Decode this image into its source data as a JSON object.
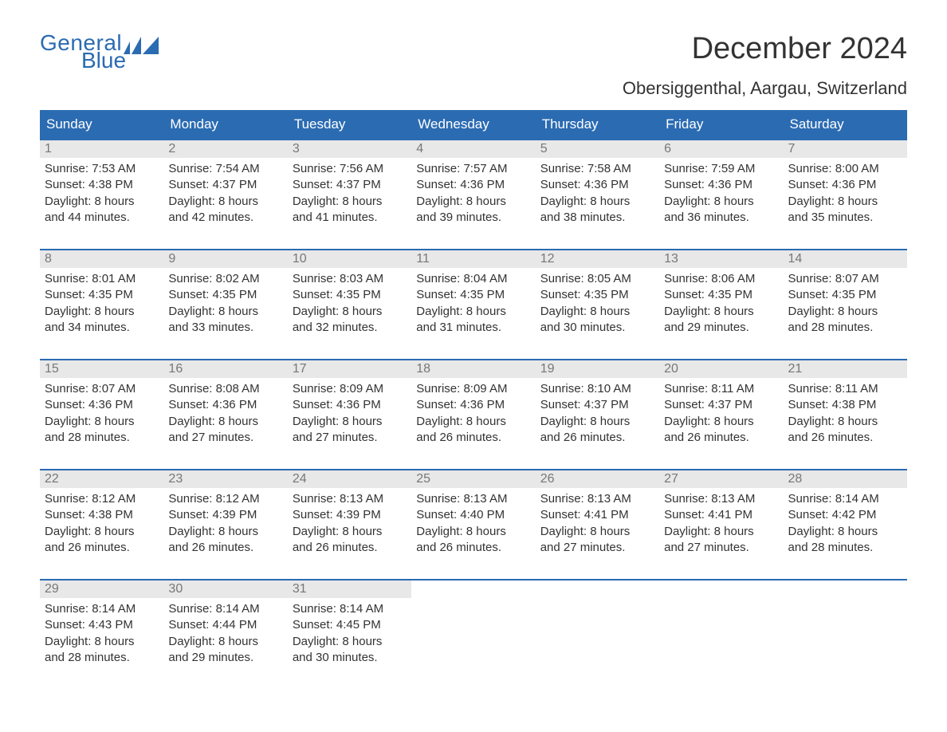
{
  "logo": {
    "text_top": "General",
    "text_bottom": "Blue",
    "color": "#2b6bb2"
  },
  "title": "December 2024",
  "location": "Obersiggenthal, Aargau, Switzerland",
  "colors": {
    "header_bg": "#2b6bb2",
    "header_text": "#ffffff",
    "day_number_bg": "#e8e8e8",
    "day_number_color": "#777777",
    "body_text": "#333333",
    "week_border": "#2b6bb2",
    "background": "#ffffff"
  },
  "typography": {
    "title_fontsize": 38,
    "location_fontsize": 22,
    "header_fontsize": 17,
    "daynum_fontsize": 16,
    "content_fontsize": 15,
    "font_family": "Arial"
  },
  "weekdays": [
    "Sunday",
    "Monday",
    "Tuesday",
    "Wednesday",
    "Thursday",
    "Friday",
    "Saturday"
  ],
  "weeks": [
    [
      {
        "day": "1",
        "sunrise": "Sunrise: 7:53 AM",
        "sunset": "Sunset: 4:38 PM",
        "daylight1": "Daylight: 8 hours",
        "daylight2": "and 44 minutes."
      },
      {
        "day": "2",
        "sunrise": "Sunrise: 7:54 AM",
        "sunset": "Sunset: 4:37 PM",
        "daylight1": "Daylight: 8 hours",
        "daylight2": "and 42 minutes."
      },
      {
        "day": "3",
        "sunrise": "Sunrise: 7:56 AM",
        "sunset": "Sunset: 4:37 PM",
        "daylight1": "Daylight: 8 hours",
        "daylight2": "and 41 minutes."
      },
      {
        "day": "4",
        "sunrise": "Sunrise: 7:57 AM",
        "sunset": "Sunset: 4:36 PM",
        "daylight1": "Daylight: 8 hours",
        "daylight2": "and 39 minutes."
      },
      {
        "day": "5",
        "sunrise": "Sunrise: 7:58 AM",
        "sunset": "Sunset: 4:36 PM",
        "daylight1": "Daylight: 8 hours",
        "daylight2": "and 38 minutes."
      },
      {
        "day": "6",
        "sunrise": "Sunrise: 7:59 AM",
        "sunset": "Sunset: 4:36 PM",
        "daylight1": "Daylight: 8 hours",
        "daylight2": "and 36 minutes."
      },
      {
        "day": "7",
        "sunrise": "Sunrise: 8:00 AM",
        "sunset": "Sunset: 4:36 PM",
        "daylight1": "Daylight: 8 hours",
        "daylight2": "and 35 minutes."
      }
    ],
    [
      {
        "day": "8",
        "sunrise": "Sunrise: 8:01 AM",
        "sunset": "Sunset: 4:35 PM",
        "daylight1": "Daylight: 8 hours",
        "daylight2": "and 34 minutes."
      },
      {
        "day": "9",
        "sunrise": "Sunrise: 8:02 AM",
        "sunset": "Sunset: 4:35 PM",
        "daylight1": "Daylight: 8 hours",
        "daylight2": "and 33 minutes."
      },
      {
        "day": "10",
        "sunrise": "Sunrise: 8:03 AM",
        "sunset": "Sunset: 4:35 PM",
        "daylight1": "Daylight: 8 hours",
        "daylight2": "and 32 minutes."
      },
      {
        "day": "11",
        "sunrise": "Sunrise: 8:04 AM",
        "sunset": "Sunset: 4:35 PM",
        "daylight1": "Daylight: 8 hours",
        "daylight2": "and 31 minutes."
      },
      {
        "day": "12",
        "sunrise": "Sunrise: 8:05 AM",
        "sunset": "Sunset: 4:35 PM",
        "daylight1": "Daylight: 8 hours",
        "daylight2": "and 30 minutes."
      },
      {
        "day": "13",
        "sunrise": "Sunrise: 8:06 AM",
        "sunset": "Sunset: 4:35 PM",
        "daylight1": "Daylight: 8 hours",
        "daylight2": "and 29 minutes."
      },
      {
        "day": "14",
        "sunrise": "Sunrise: 8:07 AM",
        "sunset": "Sunset: 4:35 PM",
        "daylight1": "Daylight: 8 hours",
        "daylight2": "and 28 minutes."
      }
    ],
    [
      {
        "day": "15",
        "sunrise": "Sunrise: 8:07 AM",
        "sunset": "Sunset: 4:36 PM",
        "daylight1": "Daylight: 8 hours",
        "daylight2": "and 28 minutes."
      },
      {
        "day": "16",
        "sunrise": "Sunrise: 8:08 AM",
        "sunset": "Sunset: 4:36 PM",
        "daylight1": "Daylight: 8 hours",
        "daylight2": "and 27 minutes."
      },
      {
        "day": "17",
        "sunrise": "Sunrise: 8:09 AM",
        "sunset": "Sunset: 4:36 PM",
        "daylight1": "Daylight: 8 hours",
        "daylight2": "and 27 minutes."
      },
      {
        "day": "18",
        "sunrise": "Sunrise: 8:09 AM",
        "sunset": "Sunset: 4:36 PM",
        "daylight1": "Daylight: 8 hours",
        "daylight2": "and 26 minutes."
      },
      {
        "day": "19",
        "sunrise": "Sunrise: 8:10 AM",
        "sunset": "Sunset: 4:37 PM",
        "daylight1": "Daylight: 8 hours",
        "daylight2": "and 26 minutes."
      },
      {
        "day": "20",
        "sunrise": "Sunrise: 8:11 AM",
        "sunset": "Sunset: 4:37 PM",
        "daylight1": "Daylight: 8 hours",
        "daylight2": "and 26 minutes."
      },
      {
        "day": "21",
        "sunrise": "Sunrise: 8:11 AM",
        "sunset": "Sunset: 4:38 PM",
        "daylight1": "Daylight: 8 hours",
        "daylight2": "and 26 minutes."
      }
    ],
    [
      {
        "day": "22",
        "sunrise": "Sunrise: 8:12 AM",
        "sunset": "Sunset: 4:38 PM",
        "daylight1": "Daylight: 8 hours",
        "daylight2": "and 26 minutes."
      },
      {
        "day": "23",
        "sunrise": "Sunrise: 8:12 AM",
        "sunset": "Sunset: 4:39 PM",
        "daylight1": "Daylight: 8 hours",
        "daylight2": "and 26 minutes."
      },
      {
        "day": "24",
        "sunrise": "Sunrise: 8:13 AM",
        "sunset": "Sunset: 4:39 PM",
        "daylight1": "Daylight: 8 hours",
        "daylight2": "and 26 minutes."
      },
      {
        "day": "25",
        "sunrise": "Sunrise: 8:13 AM",
        "sunset": "Sunset: 4:40 PM",
        "daylight1": "Daylight: 8 hours",
        "daylight2": "and 26 minutes."
      },
      {
        "day": "26",
        "sunrise": "Sunrise: 8:13 AM",
        "sunset": "Sunset: 4:41 PM",
        "daylight1": "Daylight: 8 hours",
        "daylight2": "and 27 minutes."
      },
      {
        "day": "27",
        "sunrise": "Sunrise: 8:13 AM",
        "sunset": "Sunset: 4:41 PM",
        "daylight1": "Daylight: 8 hours",
        "daylight2": "and 27 minutes."
      },
      {
        "day": "28",
        "sunrise": "Sunrise: 8:14 AM",
        "sunset": "Sunset: 4:42 PM",
        "daylight1": "Daylight: 8 hours",
        "daylight2": "and 28 minutes."
      }
    ],
    [
      {
        "day": "29",
        "sunrise": "Sunrise: 8:14 AM",
        "sunset": "Sunset: 4:43 PM",
        "daylight1": "Daylight: 8 hours",
        "daylight2": "and 28 minutes."
      },
      {
        "day": "30",
        "sunrise": "Sunrise: 8:14 AM",
        "sunset": "Sunset: 4:44 PM",
        "daylight1": "Daylight: 8 hours",
        "daylight2": "and 29 minutes."
      },
      {
        "day": "31",
        "sunrise": "Sunrise: 8:14 AM",
        "sunset": "Sunset: 4:45 PM",
        "daylight1": "Daylight: 8 hours",
        "daylight2": "and 30 minutes."
      },
      null,
      null,
      null,
      null
    ]
  ]
}
